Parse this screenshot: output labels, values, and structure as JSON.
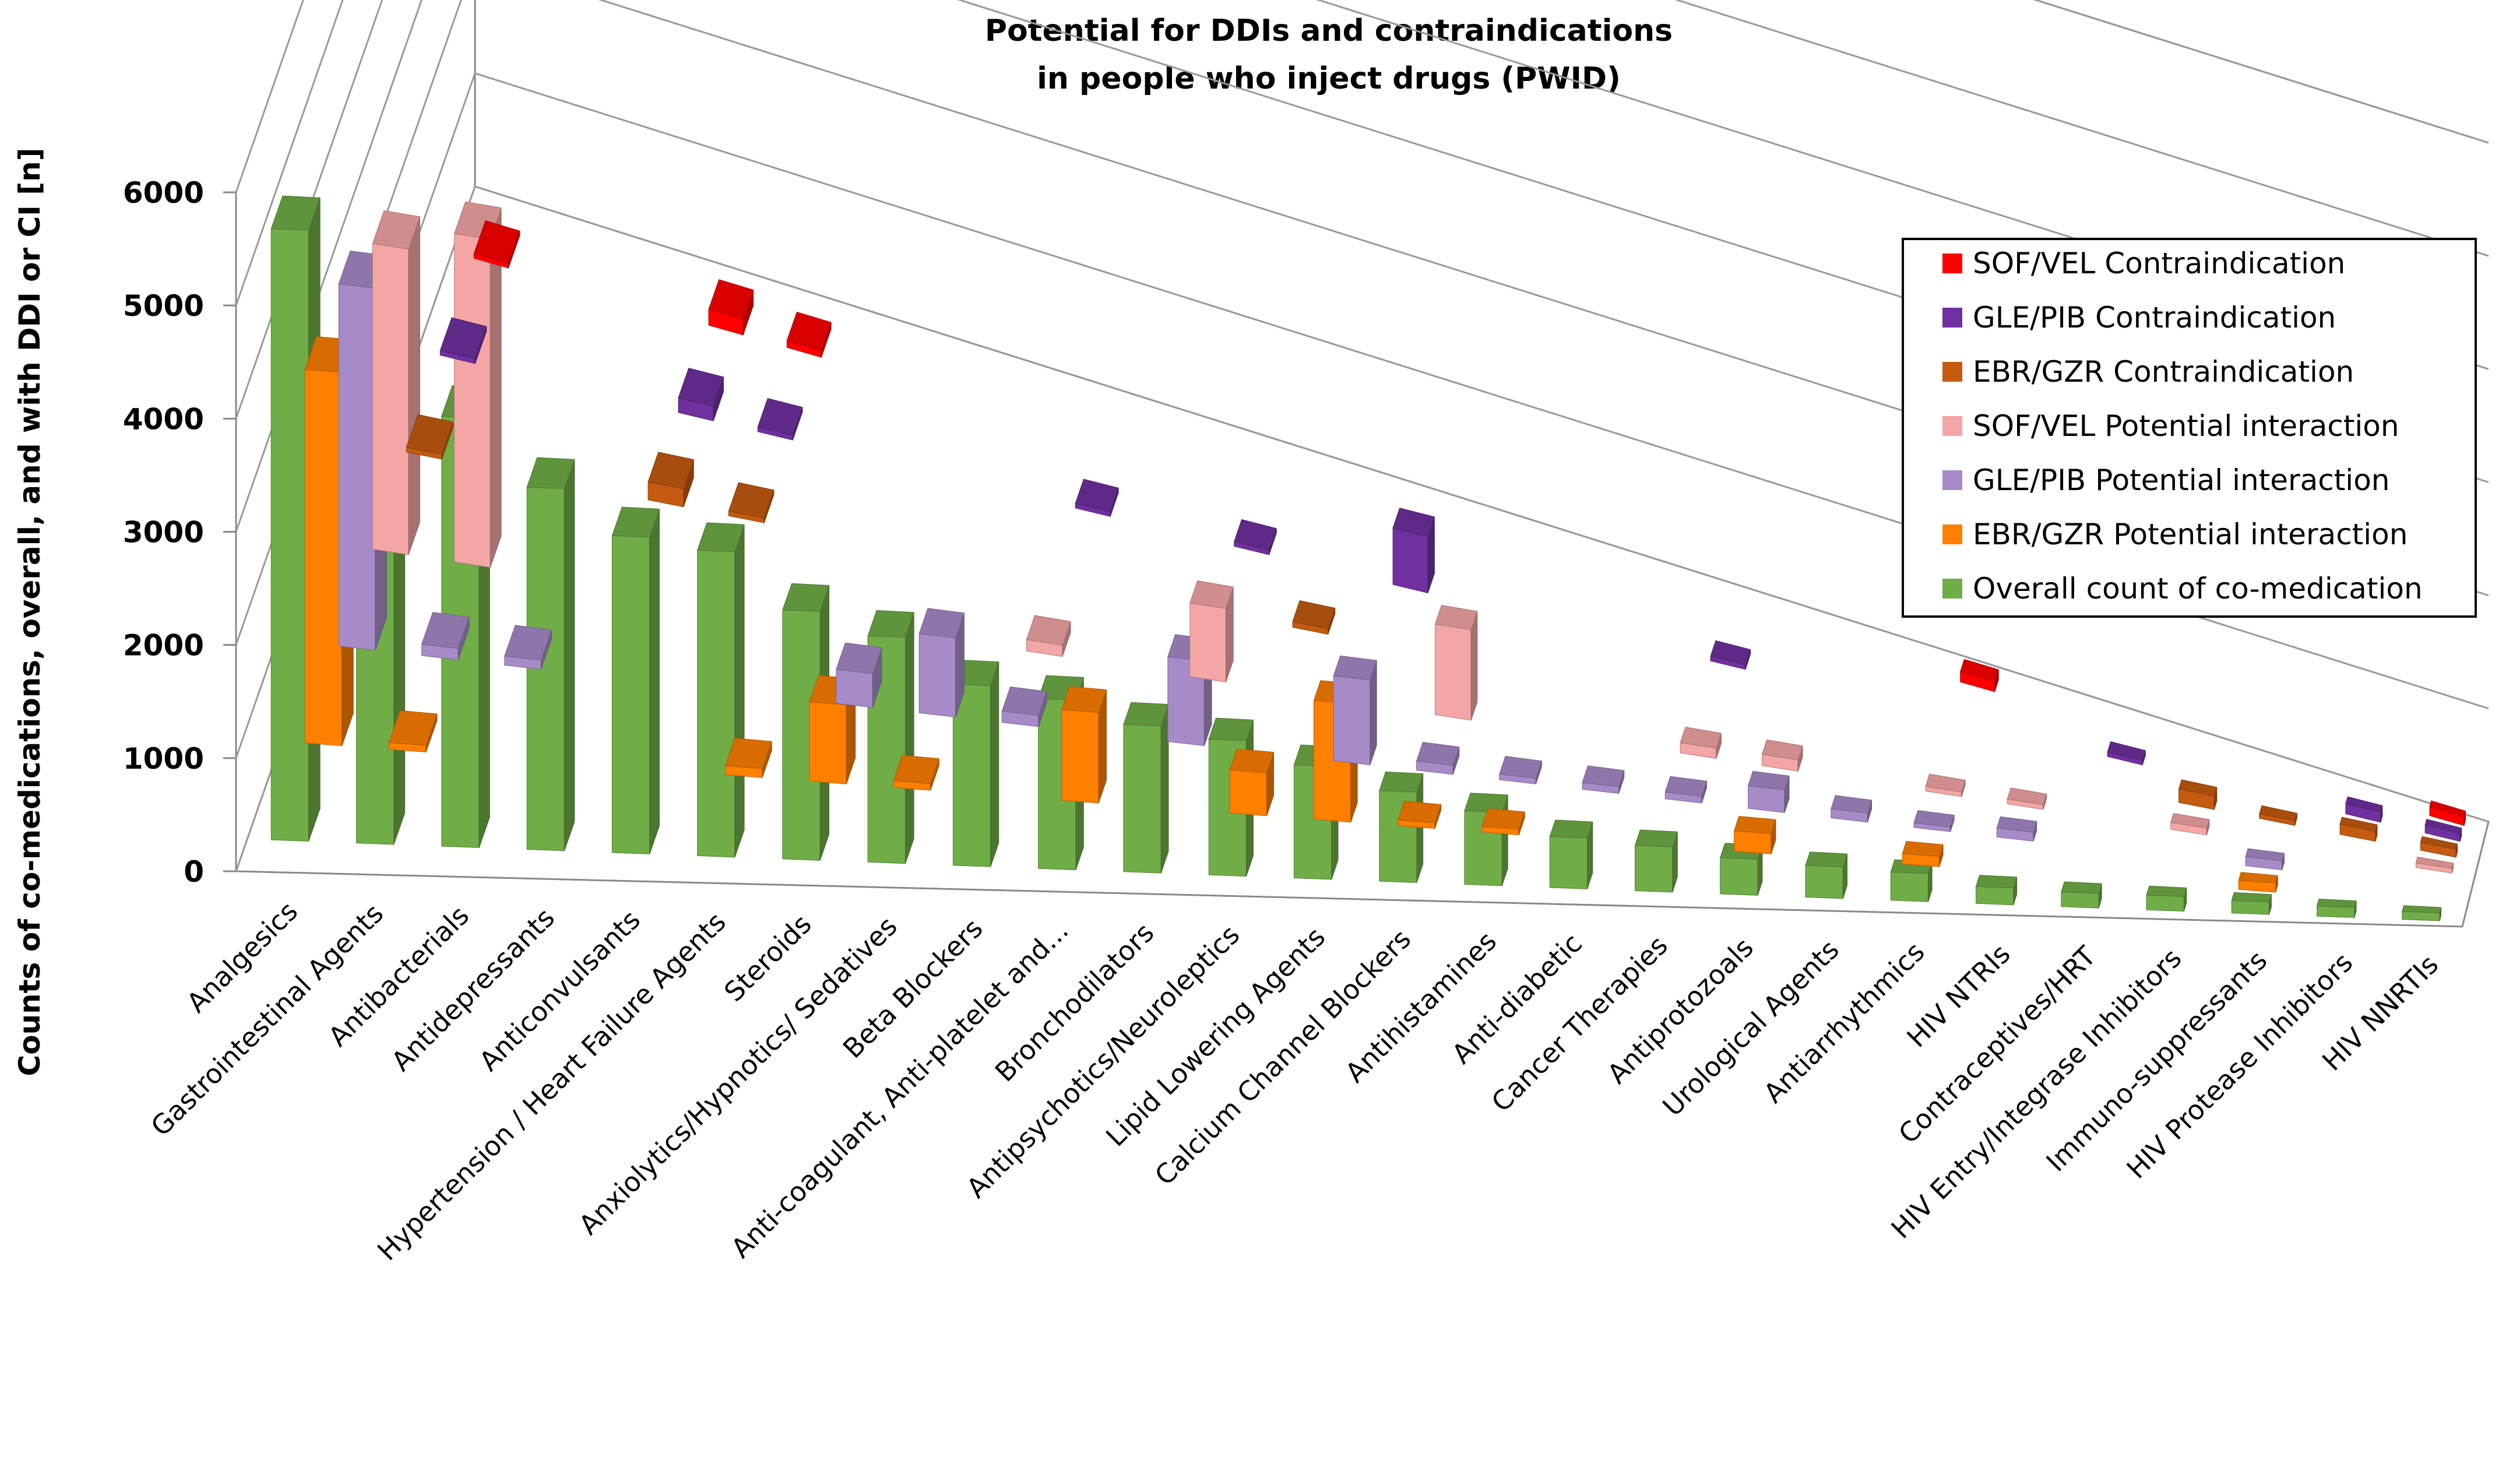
{
  "chart_data": {
    "type": "bar",
    "subtype": "3d-column",
    "title": [
      "Potential for DDIs and contraindications",
      "in people who inject drugs (PWID)"
    ],
    "xlabel": "",
    "ylabel": "Counts of co-medications, overall,  and with DDI or CI [n]",
    "ylim": [
      0,
      6000
    ],
    "yticks": [
      "0",
      "1000",
      "2000",
      "3000",
      "4000",
      "5000",
      "6000"
    ],
    "grid": true,
    "legend_position": "right",
    "categories": [
      "Analgesics",
      "Gastrointestinal Agents",
      "Antibacterials",
      "Antidepressants",
      "Anticonvulsants",
      "Hypertension / Heart Failure Agents",
      "Steroids",
      "Anxiolytics/Hypnotics/ Sedatives",
      "Beta Blockers",
      "Anti-coagulant, Anti-platelet and...",
      "Bronchodilators",
      "Antipsychotics/Neuroleptics",
      "Lipid Lowering Agents",
      "Calcium Channel Blockers",
      "Antihistamines",
      "Anti-diabetic",
      "Cancer Therapies",
      "Antiprotozoals",
      "Urological Agents",
      "Antiarrhythmics",
      "HIV NTRIs",
      "Contraceptives/HRT",
      "HIV Entry/Integrase Inhibitors",
      "Immuno-suppressants",
      "HIV Protease Inhibitors",
      "HIV NNRTIs"
    ],
    "series": [
      {
        "name": "SOF/VEL Contraindication",
        "color": "#ff0000",
        "values": [
          10,
          0,
          0,
          140,
          60,
          0,
          0,
          0,
          0,
          0,
          0,
          0,
          0,
          0,
          0,
          0,
          0,
          0,
          0,
          90,
          0,
          0,
          0,
          0,
          0,
          80
        ]
      },
      {
        "name": "GLE/PIB Contraindication",
        "color": "#7030a0",
        "values": [
          10,
          0,
          0,
          130,
          30,
          0,
          0,
          0,
          30,
          0,
          20,
          0,
          500,
          0,
          0,
          0,
          20,
          0,
          0,
          0,
          0,
          30,
          0,
          0,
          90,
          70
        ]
      },
      {
        "name": "EBR/GZR Contraindication",
        "color": "#c55a11",
        "values": [
          20,
          0,
          0,
          160,
          30,
          0,
          0,
          0,
          0,
          0,
          0,
          50,
          0,
          0,
          0,
          0,
          0,
          0,
          0,
          0,
          0,
          0,
          120,
          40,
          90,
          70
        ]
      },
      {
        "name": "SOF/VEL Potential interaction",
        "color": "#f4a6a6",
        "values": [
          2700,
          2900,
          0,
          0,
          0,
          0,
          0,
          0,
          100,
          0,
          650,
          0,
          0,
          800,
          0,
          0,
          90,
          100,
          0,
          30,
          40,
          0,
          60,
          0,
          0,
          40
        ]
      },
      {
        "name": "GLE/PIB Potential interaction",
        "color": "#a78bc8",
        "values": [
          3200,
          100,
          80,
          0,
          0,
          0,
          300,
          700,
          100,
          0,
          750,
          0,
          750,
          80,
          50,
          60,
          60,
          200,
          80,
          40,
          80,
          0,
          0,
          80,
          0,
          0
        ]
      },
      {
        "name": "EBR/GZR Potential interaction",
        "color": "#ff7f00",
        "values": [
          3300,
          60,
          0,
          0,
          0,
          80,
          700,
          60,
          0,
          800,
          0,
          380,
          1050,
          50,
          50,
          0,
          0,
          180,
          0,
          90,
          0,
          0,
          0,
          80,
          0,
          0
        ]
      },
      {
        "name": "Overall count of co-medication",
        "color": "#70ad47",
        "values": [
          5400,
          4000,
          3800,
          3200,
          2800,
          2700,
          2200,
          2000,
          1600,
          1500,
          1300,
          1200,
          1000,
          800,
          650,
          450,
          400,
          320,
          280,
          250,
          150,
          130,
          130,
          110,
          90,
          70
        ]
      }
    ]
  }
}
